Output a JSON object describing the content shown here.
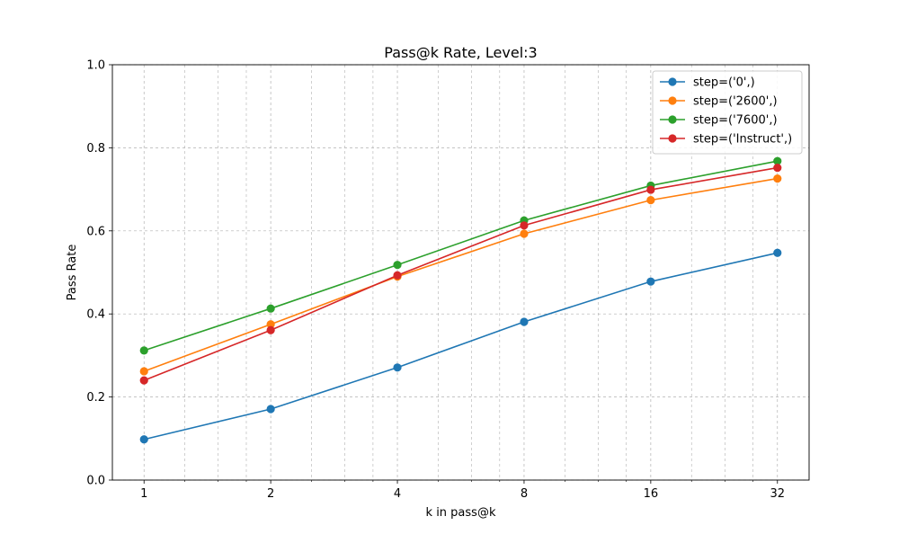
{
  "chart_data": {
    "type": "line",
    "title": "Pass@k Rate, Level:3",
    "xlabel": "k in pass@k",
    "ylabel": "Pass Rate",
    "x_scale": "log2",
    "x": [
      1,
      2,
      4,
      8,
      16,
      32
    ],
    "x_tick_labels": [
      "1",
      "2",
      "4",
      "8",
      "16",
      "32"
    ],
    "ylim": [
      0,
      1.0
    ],
    "y_ticks": [
      0.0,
      0.2,
      0.4,
      0.6,
      0.8,
      1.0
    ],
    "y_tick_labels": [
      "0.0",
      "0.2",
      "0.4",
      "0.6",
      "0.8",
      "1.0"
    ],
    "grid": true,
    "legend_position": "top-right",
    "series": [
      {
        "name": "step=('0',)",
        "color": "#1f77b4",
        "values": [
          0.098,
          0.171,
          0.271,
          0.381,
          0.478,
          0.547
        ]
      },
      {
        "name": "step=('2600',)",
        "color": "#ff7f0e",
        "values": [
          0.262,
          0.375,
          0.49,
          0.593,
          0.674,
          0.726
        ]
      },
      {
        "name": "step=('7600',)",
        "color": "#2ca02c",
        "values": [
          0.312,
          0.413,
          0.518,
          0.625,
          0.709,
          0.768
        ]
      },
      {
        "name": "step=('Instruct',)",
        "color": "#d62728",
        "values": [
          0.24,
          0.361,
          0.493,
          0.613,
          0.699,
          0.752
        ]
      }
    ]
  }
}
